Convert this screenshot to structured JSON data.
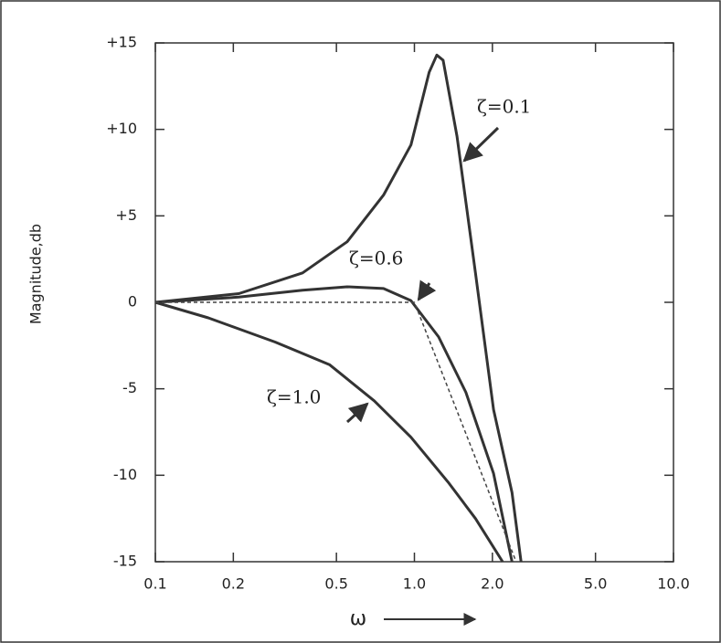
{
  "chart_data": {
    "type": "line",
    "y_label": "Magnitude,db",
    "x_label": "ω",
    "x_scale": "log",
    "xlim": [
      0.1,
      10
    ],
    "xticks": [
      0.1,
      {
        "value": 0.2,
        "label": "0.2"
      },
      {
        "value": 0.5,
        "label": "0.5"
      },
      {
        "value": 1,
        "label": "1.0"
      },
      {
        "value": 2,
        "label": "2.0"
      },
      {
        "value": 5,
        "label": "5.0"
      },
      {
        "value": 10,
        "label": "10.0"
      }
    ],
    "ylim": [
      -15,
      15
    ],
    "yticks": [
      {
        "value": 15,
        "label": "+15"
      },
      {
        "value": 10,
        "label": "+10"
      },
      {
        "value": 5,
        "label": "+5"
      },
      0,
      -5,
      -10,
      -15
    ],
    "annotations": [
      "ζ=0.1",
      "ζ=0.6",
      "ζ=1.0"
    ],
    "series": [
      {
        "color": "#333333",
        "style": "solid",
        "x": [
          0.1,
          0.21,
          0.37,
          0.55,
          0.76,
          0.97,
          1.14,
          1.22,
          1.29,
          1.46,
          1.72,
          2.02,
          2.38,
          2.58
        ],
        "values": [
          0,
          0.5,
          1.7,
          3.5,
          6.2,
          9.1,
          13.3,
          14.3,
          14.0,
          9.6,
          1.7,
          -6.2,
          -11,
          -15
        ]
      },
      {
        "color": "#333333",
        "style": "solid",
        "x": [
          0.1,
          0.21,
          0.37,
          0.55,
          0.76,
          0.97,
          1.24,
          1.58,
          2.02,
          2.38
        ],
        "values": [
          0,
          0.3,
          0.7,
          0.9,
          0.8,
          0.1,
          -2.0,
          -5.2,
          -9.9,
          -15
        ]
      },
      {
        "color": "#333333",
        "style": "solid",
        "x": [
          0.1,
          0.16,
          0.29,
          0.47,
          0.7,
          0.97,
          1.35,
          1.72,
          2.19
        ],
        "values": [
          0,
          -0.9,
          -2.3,
          -3.6,
          -5.7,
          -7.8,
          -10.4,
          -12.5,
          -15
        ]
      },
      {
        "color": "#444444",
        "style": "dashed",
        "x": [
          0.1,
          1,
          2.47
        ],
        "values": [
          0,
          0,
          -15
        ]
      }
    ]
  }
}
